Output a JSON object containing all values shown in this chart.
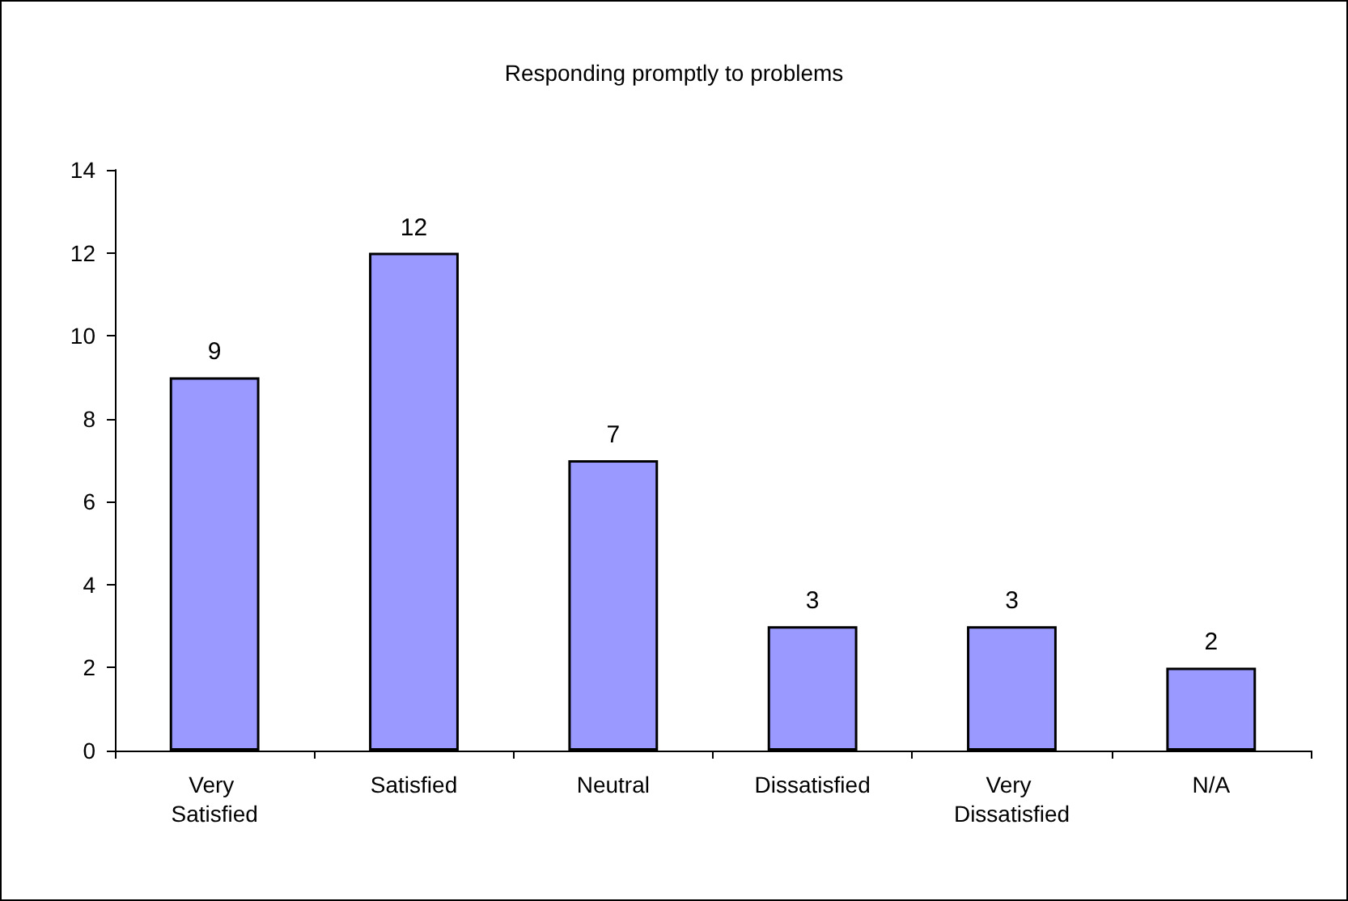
{
  "chart_data": {
    "type": "bar",
    "title": "Responding promptly to problems",
    "categories": [
      "Very Satisfied",
      "Satisfied",
      "Neutral",
      "Dissatisfied",
      "Very Dissatisfied",
      "N/A"
    ],
    "values": [
      9,
      12,
      7,
      3,
      3,
      2
    ],
    "color": "#9999ff",
    "ylim": [
      0,
      14
    ],
    "yticks": [
      0,
      2,
      4,
      6,
      8,
      10,
      12,
      14
    ],
    "grid": false,
    "data_labels": true
  }
}
